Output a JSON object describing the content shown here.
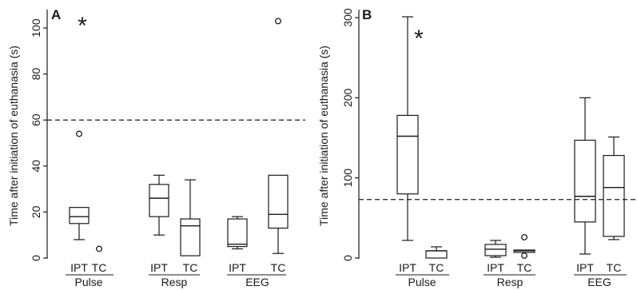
{
  "chart_data": [
    {
      "type": "box",
      "panel": "A",
      "ylabel": "Time after initiation of euthanasia (s)",
      "ylim": [
        0,
        108
      ],
      "yticks": [
        0,
        20,
        40,
        60,
        80,
        100
      ],
      "reference_line": 60,
      "groups": [
        {
          "label": "Pulse",
          "annotation": "*",
          "boxes": [
            {
              "label": "IPT",
              "whisker_low": 8,
              "q1": 15,
              "median": 18,
              "q3": 22,
              "whisker_high": 22,
              "outliers": [
                54
              ]
            },
            {
              "label": "TC",
              "whisker_low": null,
              "q1": null,
              "median": null,
              "q3": null,
              "whisker_high": null,
              "outliers": [
                4
              ]
            }
          ]
        },
        {
          "label": "Resp",
          "annotation": "",
          "boxes": [
            {
              "label": "IPT",
              "whisker_low": 10,
              "q1": 18,
              "median": 26,
              "q3": 32,
              "whisker_high": 36,
              "outliers": []
            },
            {
              "label": "TC",
              "whisker_low": 1,
              "q1": 1,
              "median": 14,
              "q3": 17,
              "whisker_high": 34,
              "outliers": []
            }
          ]
        },
        {
          "label": "EEG",
          "annotation": "",
          "boxes": [
            {
              "label": "IPT",
              "whisker_low": 4,
              "q1": 5,
              "median": 6,
              "q3": 17,
              "whisker_high": 18,
              "outliers": []
            },
            {
              "label": "TC",
              "whisker_low": 2,
              "q1": 13,
              "median": 19,
              "q3": 36,
              "whisker_high": 36,
              "outliers": [
                103
              ]
            }
          ]
        }
      ]
    },
    {
      "type": "box",
      "panel": "B",
      "ylabel": "Time after initiation of euthanasia (s)",
      "ylim": [
        0,
        310
      ],
      "yticks": [
        0,
        100,
        200,
        300
      ],
      "reference_line": 73,
      "groups": [
        {
          "label": "Pulse",
          "annotation": "*",
          "boxes": [
            {
              "label": "IPT",
              "whisker_low": 22,
              "q1": 80,
              "median": 152,
              "q3": 178,
              "whisker_high": 301,
              "outliers": []
            },
            {
              "label": "TC",
              "whisker_low": 0,
              "q1": 0,
              "median": 9,
              "q3": 9,
              "whisker_high": 14,
              "outliers": []
            }
          ]
        },
        {
          "label": "Resp",
          "annotation": "",
          "boxes": [
            {
              "label": "IPT",
              "whisker_low": 1,
              "q1": 3,
              "median": 11,
              "q3": 17,
              "whisker_high": 22,
              "outliers": []
            },
            {
              "label": "TC",
              "whisker_low": 7,
              "q1": 7,
              "median": 9,
              "q3": 10,
              "whisker_high": 10,
              "outliers": [
                26,
                3
              ]
            }
          ]
        },
        {
          "label": "EEG",
          "annotation": "",
          "boxes": [
            {
              "label": "IPT",
              "whisker_low": 5,
              "q1": 45,
              "median": 77,
              "q3": 147,
              "whisker_high": 200,
              "outliers": []
            },
            {
              "label": "TC",
              "whisker_low": 23,
              "q1": 27,
              "median": 88,
              "q3": 128,
              "whisker_high": 151,
              "outliers": []
            }
          ]
        }
      ]
    }
  ]
}
